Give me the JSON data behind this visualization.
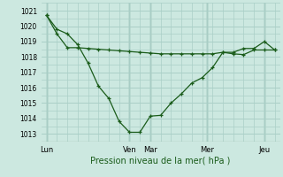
{
  "xlabel": "Pression niveau de la mer( hPa )",
  "bg_color": "#cce8e0",
  "grid_color": "#aacfc7",
  "line_color": "#1a5c1a",
  "ylim": [
    1012.5,
    1021.5
  ],
  "xlim": [
    -0.5,
    22.5
  ],
  "yticks": [
    1013,
    1014,
    1015,
    1016,
    1017,
    1018,
    1019,
    1020,
    1021
  ],
  "ytick_fontsize": 5.5,
  "xtick_positions": [
    0,
    8,
    10,
    15.5,
    21
  ],
  "xtick_labels": [
    "Lun",
    "Ven",
    "Mar",
    "Mer",
    "Jeu"
  ],
  "vline_positions": [
    0,
    8,
    10,
    15.5,
    21
  ],
  "minor_grid_x_count": 8,
  "line1_x": [
    0,
    1,
    2,
    3,
    4,
    5,
    6,
    7,
    8,
    9,
    10,
    11,
    12,
    13,
    14,
    15,
    16,
    17,
    18,
    19,
    20,
    21,
    22
  ],
  "line1_y": [
    1020.7,
    1019.8,
    1019.5,
    1018.8,
    1017.6,
    1016.1,
    1015.3,
    1013.8,
    1013.1,
    1013.1,
    1014.15,
    1014.2,
    1015.0,
    1015.6,
    1016.3,
    1016.65,
    1017.3,
    1018.3,
    1018.2,
    1018.15,
    1018.45,
    1018.45,
    1018.45
  ],
  "line2_x": [
    0,
    1,
    2,
    3,
    4,
    5,
    6,
    7,
    8,
    9,
    10,
    11,
    12,
    13,
    14,
    15,
    16,
    17,
    18,
    19,
    20,
    21,
    22
  ],
  "line2_y": [
    1020.7,
    1019.5,
    1018.6,
    1018.6,
    1018.55,
    1018.5,
    1018.45,
    1018.4,
    1018.35,
    1018.3,
    1018.25,
    1018.2,
    1018.2,
    1018.2,
    1018.2,
    1018.2,
    1018.2,
    1018.3,
    1018.3,
    1018.55,
    1018.55,
    1019.0,
    1018.45
  ],
  "marker_style": "+",
  "marker_size": 3.5,
  "linewidth": 0.9,
  "xlabel_fontsize": 7,
  "xtick_fontsize": 6
}
